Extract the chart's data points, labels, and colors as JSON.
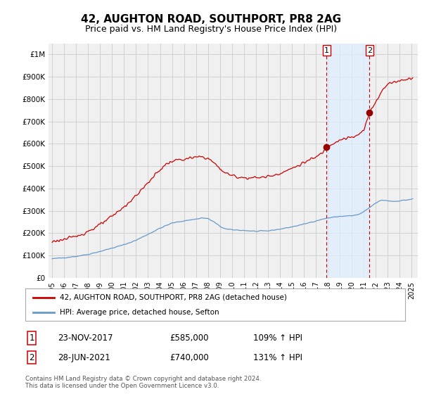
{
  "title": "42, AUGHTON ROAD, SOUTHPORT, PR8 2AG",
  "subtitle": "Price paid vs. HM Land Registry's House Price Index (HPI)",
  "title_fontsize": 11,
  "subtitle_fontsize": 9,
  "ylabel_ticks": [
    "£0",
    "£100K",
    "£200K",
    "£300K",
    "£400K",
    "£500K",
    "£600K",
    "£700K",
    "£800K",
    "£900K",
    "£1M"
  ],
  "ytick_values": [
    0,
    100000,
    200000,
    300000,
    400000,
    500000,
    600000,
    700000,
    800000,
    900000,
    1000000
  ],
  "ylim": [
    0,
    1050000
  ],
  "xlim_start": 1994.7,
  "xlim_end": 2025.5,
  "xtick_years": [
    1995,
    1996,
    1997,
    1998,
    1999,
    2000,
    2001,
    2002,
    2003,
    2004,
    2005,
    2006,
    2007,
    2008,
    2009,
    2010,
    2011,
    2012,
    2013,
    2014,
    2015,
    2016,
    2017,
    2018,
    2019,
    2020,
    2021,
    2022,
    2023,
    2024,
    2025
  ],
  "grid_color": "#cccccc",
  "background_color": "#ffffff",
  "plot_bg_color": "#f0f0f0",
  "red_line_color": "#cc0000",
  "blue_line_color": "#6699cc",
  "marker_color": "#990000",
  "sale1_x": 2017.9,
  "sale1_y": 585000,
  "sale1_label": "1",
  "sale2_x": 2021.48,
  "sale2_y": 740000,
  "sale2_label": "2",
  "vline_color": "#cc0000",
  "shade_color": "#ddeeff",
  "legend_label_red": "42, AUGHTON ROAD, SOUTHPORT, PR8 2AG (detached house)",
  "legend_label_blue": "HPI: Average price, detached house, Sefton",
  "table_row1": [
    "1",
    "23-NOV-2017",
    "£585,000",
    "109% ↑ HPI"
  ],
  "table_row2": [
    "2",
    "28-JUN-2021",
    "£740,000",
    "131% ↑ HPI"
  ],
  "footer_text": "Contains HM Land Registry data © Crown copyright and database right 2024.\nThis data is licensed under the Open Government Licence v3.0."
}
